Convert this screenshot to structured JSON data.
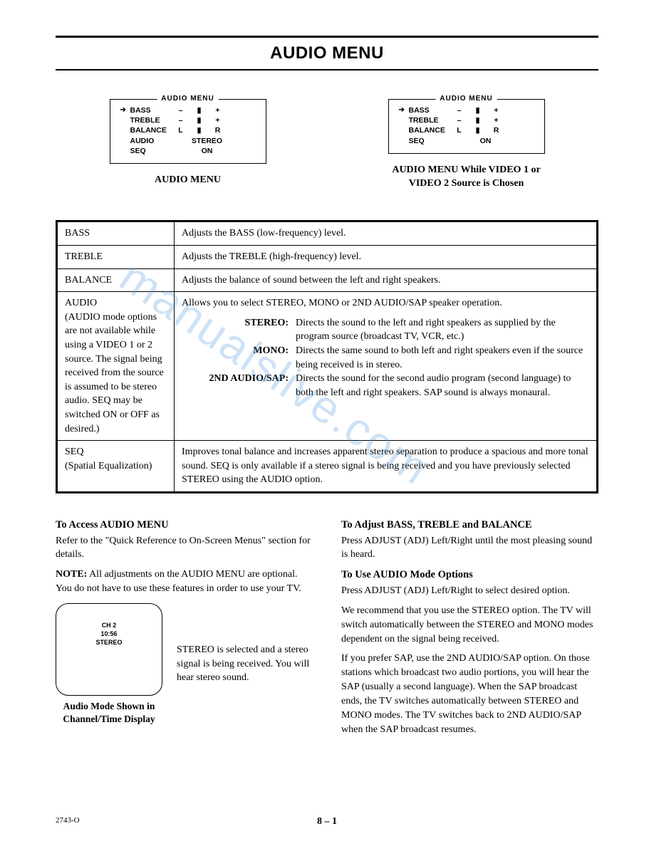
{
  "title": "AUDIO MENU",
  "watermark": "manualslive.com",
  "menu1": {
    "header": "AUDIO  MENU",
    "rows": [
      {
        "arrow": "➔",
        "label": "BASS",
        "l": "–",
        "c": "▮",
        "r": "+"
      },
      {
        "arrow": "",
        "label": "TREBLE",
        "l": "–",
        "c": "▮",
        "r": "+"
      },
      {
        "arrow": "",
        "label": "BALANCE",
        "l": "L",
        "c": "▮",
        "r": "R"
      }
    ],
    "extras": [
      {
        "label": "AUDIO",
        "value": "STEREO"
      },
      {
        "label": "SEQ",
        "value": "ON"
      }
    ],
    "caption": "AUDIO MENU"
  },
  "menu2": {
    "header": "AUDIO  MENU",
    "rows": [
      {
        "arrow": "➔",
        "label": "BASS",
        "l": "–",
        "c": "▮",
        "r": "+"
      },
      {
        "arrow": "",
        "label": "TREBLE",
        "l": "–",
        "c": "▮",
        "r": "+"
      },
      {
        "arrow": "",
        "label": "BALANCE",
        "l": "L",
        "c": "▮",
        "r": "R"
      }
    ],
    "extras": [
      {
        "label": "SEQ",
        "value": "ON"
      }
    ],
    "caption": "AUDIO MENU While VIDEO 1 or VIDEO 2 Source is Chosen"
  },
  "table": {
    "bass": {
      "label": "BASS",
      "desc": "Adjusts the BASS (low-frequency) level."
    },
    "treble": {
      "label": "TREBLE",
      "desc": "Adjusts the TREBLE (high-frequency) level."
    },
    "balance": {
      "label": "BALANCE",
      "desc": "Adjusts the balance of sound between the left and right speakers."
    },
    "audio": {
      "label": "AUDIO",
      "note": "(AUDIO mode options are not available while using a VIDEO 1 or 2 source. The signal being received from the source is assumed to be stereo audio. SEQ may be switched ON or OFF as desired.)",
      "desc": "Allows you to select STEREO, MONO or 2ND AUDIO/SAP speaker operation.",
      "subs": {
        "stereo": {
          "k": "STEREO:",
          "v": "Directs the sound to the left and right speakers as supplied by the program source (broadcast TV, VCR, etc.)"
        },
        "mono": {
          "k": "MONO:",
          "v": "Directs the same sound to both left and right speakers even if the source being received is in stereo."
        },
        "sap": {
          "k": "2ND AUDIO/SAP:",
          "v": "Directs the sound for the second audio program (second language) to both the left and right speakers. SAP sound is always monaural."
        }
      }
    },
    "seq": {
      "label": "SEQ",
      "note": "(Spatial Equalization)",
      "desc": "Improves tonal balance and increases apparent stereo separation to produce a spacious and more tonal sound. SEQ is only available if a stereo signal is being received and you have previously selected STEREO using the AUDIO option."
    }
  },
  "left": {
    "h1": "To Access AUDIO MENU",
    "p1": "Refer to the \"Quick Reference to On-Screen Menus\" section for details.",
    "p2a": "NOTE:",
    "p2b": " All adjustments on the AUDIO MENU are optional. You do not have to use these features in order to use your TV.",
    "tv": {
      "ch": "CH 2",
      "time": "10:56",
      "mode": "STEREO"
    },
    "tvdesc": "STEREO is selected and a stereo signal is being received. You will hear stereo sound.",
    "tvcaption": "Audio Mode Shown in Channel/Time Display"
  },
  "right": {
    "h1": "To Adjust BASS, TREBLE and BALANCE",
    "p1": "Press ADJUST (ADJ) Left/Right until the most pleasing sound is heard.",
    "h2": "To Use AUDIO Mode Options",
    "p2": "Press ADJUST (ADJ) Left/Right to select desired option.",
    "p3": "We recommend that you use the STEREO option. The TV will switch automatically between the STEREO and MONO modes dependent on the signal being received.",
    "p4": "If you prefer SAP, use the 2ND AUDIO/SAP option. On those stations which broadcast two audio portions, you will hear the SAP (usually a second language). When the SAP broadcast ends, the TV switches automatically between STEREO and MONO modes. The TV switches back to 2ND AUDIO/SAP when the SAP broadcast resumes."
  },
  "footer": {
    "doc": "2743-O",
    "page": "8 – 1"
  }
}
